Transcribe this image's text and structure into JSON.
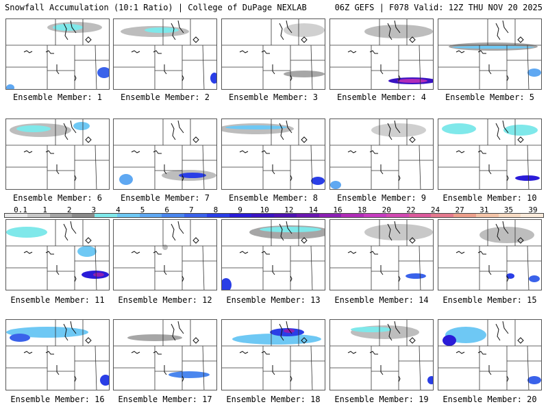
{
  "header": {
    "left_title": "Snowfall Accumulation (10:1 Ratio) | College of DuPage NEXLAB",
    "right_title": "06Z GEFS | F078 Valid: 12Z THU NOV 20 2025"
  },
  "colorbar": {
    "labels": [
      "0.1",
      "1",
      "2",
      "3",
      "4",
      "5",
      "6",
      "7",
      "8",
      "9",
      "10",
      "12",
      "14",
      "16",
      "18",
      "20",
      "22",
      "24",
      "27",
      "31",
      "35",
      "39"
    ],
    "colors": [
      "#e8e8e8",
      "#c8c8c8",
      "#a6a6a6",
      "#8a8a8a",
      "#7fe8ea",
      "#6ec8f4",
      "#5fa8f2",
      "#4a86ee",
      "#3a62ea",
      "#2a3ee6",
      "#2a1cd8",
      "#3a14c2",
      "#4e14b2",
      "#6a18b0",
      "#8c20b4",
      "#b02cb8",
      "#c63cc0",
      "#d24ab2",
      "#dc5a9c",
      "#e57a8e",
      "#eea08c",
      "#f4c4a8",
      "#f8dcc4",
      "#fcecdc"
    ]
  },
  "panels": [
    {
      "caption": "Ensemble Member: 1",
      "icon": "snowfall-map"
    },
    {
      "caption": "Ensemble Member: 2",
      "icon": "snowfall-map"
    },
    {
      "caption": "Ensemble Member: 3",
      "icon": "snowfall-map"
    },
    {
      "caption": "Ensemble Member: 4",
      "icon": "snowfall-map"
    },
    {
      "caption": "Ensemble Member: 5",
      "icon": "snowfall-map"
    },
    {
      "caption": "Ensemble Member: 6",
      "icon": "snowfall-map"
    },
    {
      "caption": "Ensemble Member: 7",
      "icon": "snowfall-map"
    },
    {
      "caption": "Ensemble Member: 8",
      "icon": "snowfall-map"
    },
    {
      "caption": "Ensemble Member: 9",
      "icon": "snowfall-map"
    },
    {
      "caption": "Ensemble Member: 10",
      "icon": "snowfall-map"
    },
    {
      "caption": "Ensemble Member: 11",
      "icon": "snowfall-map"
    },
    {
      "caption": "Ensemble Member: 12",
      "icon": "snowfall-map"
    },
    {
      "caption": "Ensemble Member: 13",
      "icon": "snowfall-map"
    },
    {
      "caption": "Ensemble Member: 14",
      "icon": "snowfall-map"
    },
    {
      "caption": "Ensemble Member: 15",
      "icon": "snowfall-map"
    },
    {
      "caption": "Ensemble Member: 16",
      "icon": "snowfall-map"
    },
    {
      "caption": "Ensemble Member: 17",
      "icon": "snowfall-map"
    },
    {
      "caption": "Ensemble Member: 18",
      "icon": "snowfall-map"
    },
    {
      "caption": "Ensemble Member: 19",
      "icon": "snowfall-map"
    },
    {
      "caption": "Ensemble Member: 20",
      "icon": "snowfall-map"
    }
  ]
}
